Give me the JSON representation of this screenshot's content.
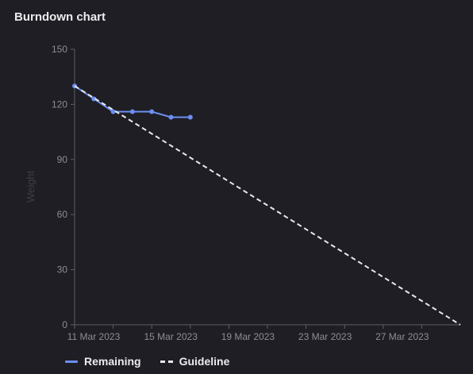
{
  "header": {
    "title": "Burndown chart"
  },
  "chart_data": {
    "type": "line",
    "title": "Burndown chart",
    "xlabel": "",
    "ylabel": "Weight",
    "ylim": [
      0,
      150
    ],
    "yticks": [
      0,
      30,
      60,
      90,
      120,
      150
    ],
    "xlim": [
      "2023-03-11",
      "2023-03-31"
    ],
    "xtick_labels": [
      "11 Mar 2023",
      "15 Mar 2023",
      "19 Mar 2023",
      "23 Mar 2023",
      "27 Mar 2023"
    ],
    "xtick_positions": [
      "2023-03-11",
      "2023-03-15",
      "2023-03-19",
      "2023-03-23",
      "2023-03-27"
    ],
    "minor_ticks": [
      "2023-03-13",
      "2023-03-17",
      "2023-03-21",
      "2023-03-25",
      "2023-03-29"
    ],
    "grid": false,
    "legend": "bottom-left",
    "series": [
      {
        "name": "Remaining",
        "color": "#6b8ff0",
        "style": "solid",
        "markers": true,
        "x": [
          "2023-03-11",
          "2023-03-12",
          "2023-03-13",
          "2023-03-14",
          "2023-03-15",
          "2023-03-16",
          "2023-03-17"
        ],
        "values": [
          130,
          123,
          116,
          116,
          116,
          113,
          113
        ]
      },
      {
        "name": "Guideline",
        "color": "#e8e8ec",
        "style": "dashed",
        "markers": false,
        "x": [
          "2023-03-11",
          "2023-03-31"
        ],
        "values": [
          130,
          0
        ]
      }
    ]
  },
  "legend": {
    "remaining_label": "Remaining",
    "guideline_label": "Guideline"
  },
  "colors": {
    "background": "#1f1e24",
    "axis": "#5f5e66",
    "tick_text": "#8e8d94",
    "ylabel_text": "#3f3e46"
  }
}
